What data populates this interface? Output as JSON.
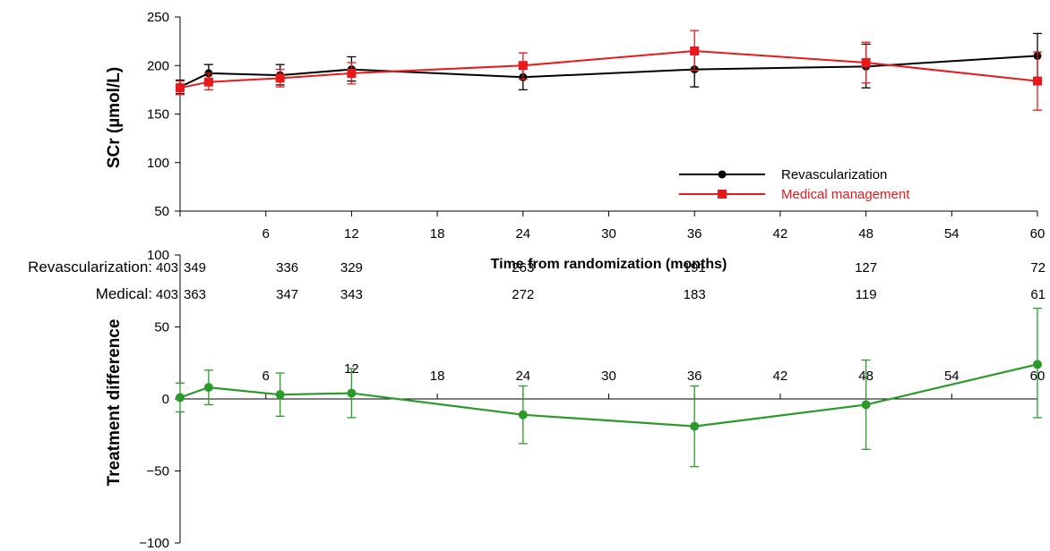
{
  "chart_data": [
    {
      "type": "line",
      "ylabel": "SCr (µmol/L)",
      "ylim": [
        50,
        250
      ],
      "yticks": [
        50,
        100,
        150,
        200,
        250
      ],
      "xlim": [
        0,
        60
      ],
      "xticks": [
        6,
        12,
        18,
        24,
        30,
        36,
        42,
        48,
        54,
        60
      ],
      "legend_position": "right-middle",
      "series": [
        {
          "name": "Revascularization",
          "color": "#000000",
          "marker": "circle",
          "points": [
            {
              "x": 0,
              "y": 178,
              "lo": 171,
              "hi": 185
            },
            {
              "x": 2,
              "y": 192,
              "lo": 183,
              "hi": 201
            },
            {
              "x": 7,
              "y": 190,
              "lo": 180,
              "hi": 201
            },
            {
              "x": 12,
              "y": 196,
              "lo": 184,
              "hi": 209
            },
            {
              "x": 24,
              "y": 188,
              "lo": 175,
              "hi": 202
            },
            {
              "x": 36,
              "y": 196,
              "lo": 178,
              "hi": 214
            },
            {
              "x": 48,
              "y": 199,
              "lo": 177,
              "hi": 222
            },
            {
              "x": 60,
              "y": 210,
              "lo": 187,
              "hi": 233
            }
          ]
        },
        {
          "name": "Medical management",
          "color": "#e8191b",
          "marker": "square",
          "points": [
            {
              "x": 0,
              "y": 177,
              "lo": 170,
              "hi": 184
            },
            {
              "x": 2,
              "y": 183,
              "lo": 175,
              "hi": 192
            },
            {
              "x": 7,
              "y": 187,
              "lo": 178,
              "hi": 196
            },
            {
              "x": 12,
              "y": 192,
              "lo": 181,
              "hi": 203
            },
            {
              "x": 24,
              "y": 200,
              "lo": 186,
              "hi": 213
            },
            {
              "x": 36,
              "y": 215,
              "lo": 195,
              "hi": 236
            },
            {
              "x": 48,
              "y": 203,
              "lo": 182,
              "hi": 224
            },
            {
              "x": 60,
              "y": 184,
              "lo": 154,
              "hi": 214
            }
          ]
        }
      ],
      "numbers_at_risk": {
        "x_positions": [
          0,
          2,
          7,
          12,
          24,
          36,
          48,
          60
        ],
        "rows": [
          {
            "label": "Revascularization:",
            "values": [
              "403",
              "349",
              "336",
              "329",
              "263",
              "191",
              "127",
              "72"
            ]
          },
          {
            "label": "Medical:",
            "values": [
              "403",
              "363",
              "347",
              "343",
              "272",
              "183",
              "119",
              "61"
            ]
          }
        ]
      }
    },
    {
      "type": "line",
      "ylabel": "Treatment difference",
      "xlabel": "Time from randomization (months)",
      "ylim": [
        -100,
        100
      ],
      "yticks": [
        -100,
        -50,
        0,
        50,
        100
      ],
      "ytick_labels": [
        "−100",
        "−50",
        "0",
        "50",
        "100"
      ],
      "xlim": [
        0,
        60
      ],
      "xticks": [
        6,
        12,
        18,
        24,
        30,
        36,
        42,
        48,
        54,
        60
      ],
      "series": [
        {
          "color": "#2b9a2b",
          "marker": "circle",
          "points": [
            {
              "x": 0,
              "y": 1,
              "lo": -9,
              "hi": 11
            },
            {
              "x": 2,
              "y": 8,
              "lo": -4,
              "hi": 20
            },
            {
              "x": 7,
              "y": 3,
              "lo": -12,
              "hi": 18
            },
            {
              "x": 12,
              "y": 4,
              "lo": -13,
              "hi": 21
            },
            {
              "x": 24,
              "y": -11,
              "lo": -31,
              "hi": 9
            },
            {
              "x": 36,
              "y": -19,
              "lo": -47,
              "hi": 9
            },
            {
              "x": 48,
              "y": -4,
              "lo": -35,
              "hi": 27
            },
            {
              "x": 60,
              "y": 24,
              "lo": -13,
              "hi": 63
            }
          ]
        }
      ]
    }
  ]
}
